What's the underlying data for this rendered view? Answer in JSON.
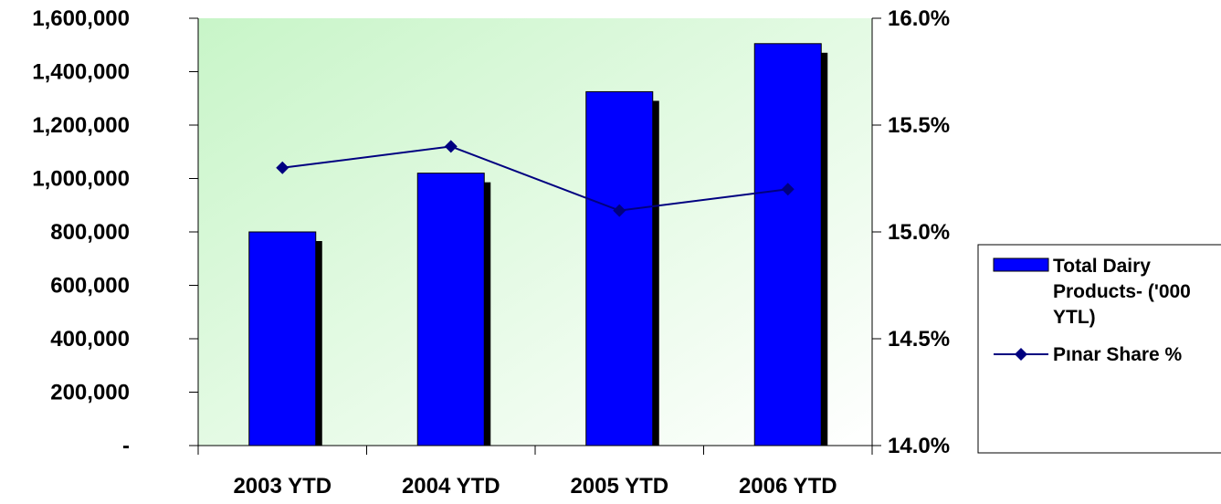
{
  "chart_data": {
    "type": "bar",
    "categories": [
      "2003 YTD",
      "2004 YTD",
      "2005 YTD",
      "2006 YTD"
    ],
    "series": [
      {
        "name": "Total Dairy Products- ('000 YTL)",
        "type": "bar",
        "axis": "left",
        "values": [
          800000,
          1020000,
          1325000,
          1505000
        ],
        "color": "#0000FF"
      },
      {
        "name": "Pınar Share %",
        "type": "line",
        "axis": "right",
        "values": [
          15.3,
          15.4,
          15.1,
          15.2
        ],
        "color": "#000080",
        "marker": "diamond"
      }
    ],
    "y_left": {
      "ylim": [
        0,
        1600000
      ],
      "ticks": [
        0,
        200000,
        400000,
        600000,
        800000,
        1000000,
        1200000,
        1400000,
        1600000
      ],
      "tick_labels": [
        "-",
        "200,000",
        "400,000",
        "600,000",
        "800,000",
        "1,000,000",
        "1,200,000",
        "1,400,000",
        "1,600,000"
      ]
    },
    "y_right": {
      "ylim": [
        14.0,
        16.0
      ],
      "ticks": [
        14.0,
        14.5,
        15.0,
        15.5,
        16.0
      ],
      "tick_labels": [
        "14.0%",
        "14.5%",
        "15.0%",
        "15.5%",
        "16.0%"
      ]
    },
    "title": "",
    "xlabel": "",
    "ylabel": "",
    "grid": false,
    "legend_position": "right",
    "legend": {
      "bar_label_lines": [
        "Total Dairy",
        "Products- ('000",
        "YTL)"
      ],
      "line_label": "Pınar Share %"
    },
    "colors": {
      "plot_gradient_start": "#c8f5c8",
      "plot_gradient_end": "#ffffff",
      "bar_fill": "#0000FF",
      "bar_shadow": "#000000",
      "line": "#000080"
    }
  }
}
